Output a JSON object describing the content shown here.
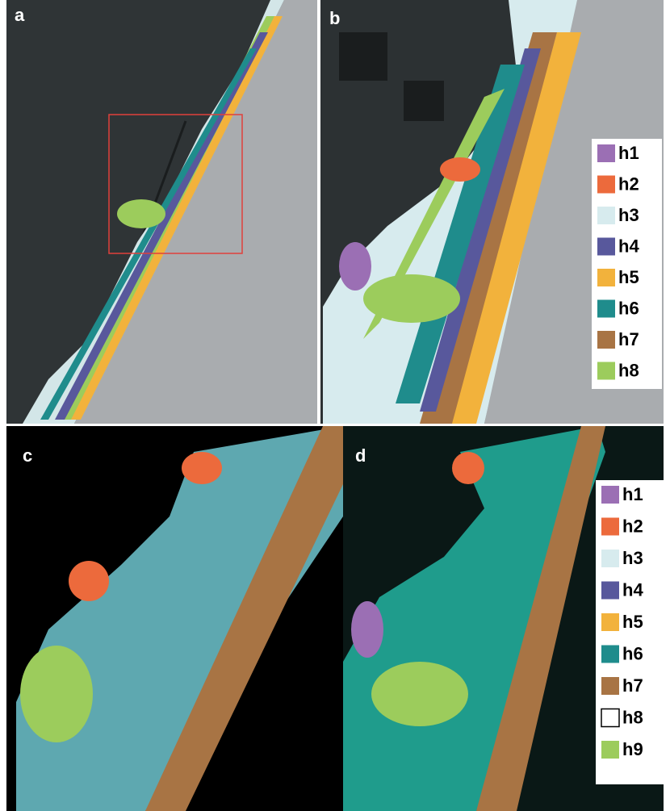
{
  "panels": [
    {
      "label": "a"
    },
    {
      "label": "b"
    },
    {
      "label": "c"
    },
    {
      "label": "d"
    }
  ],
  "legend_b": [
    {
      "label": "h1",
      "color": "#9b6fb4"
    },
    {
      "label": "h2",
      "color": "#ec6a3c"
    },
    {
      "label": "h3",
      "color": "#d7ebee"
    },
    {
      "label": "h4",
      "color": "#58589c"
    },
    {
      "label": "h5",
      "color": "#f2b23c"
    },
    {
      "label": "h6",
      "color": "#1f8c8c"
    },
    {
      "label": "h7",
      "color": "#a87444"
    },
    {
      "label": "h8",
      "color": "#9ccc5c"
    }
  ],
  "legend_d": [
    {
      "label": "h1",
      "color": "#9b6fb4"
    },
    {
      "label": "h2",
      "color": "#ec6a3c"
    },
    {
      "label": "h3",
      "color": "#d7ebee"
    },
    {
      "label": "h4",
      "color": "#58589c"
    },
    {
      "label": "h5",
      "color": "#f2b23c"
    },
    {
      "label": "h6",
      "color": "#1f8c8c"
    },
    {
      "label": "h7",
      "color": "#a87444"
    },
    {
      "label": "h8",
      "color": "#ffffff"
    },
    {
      "label": "h9",
      "color": "#9ccc5c"
    }
  ]
}
